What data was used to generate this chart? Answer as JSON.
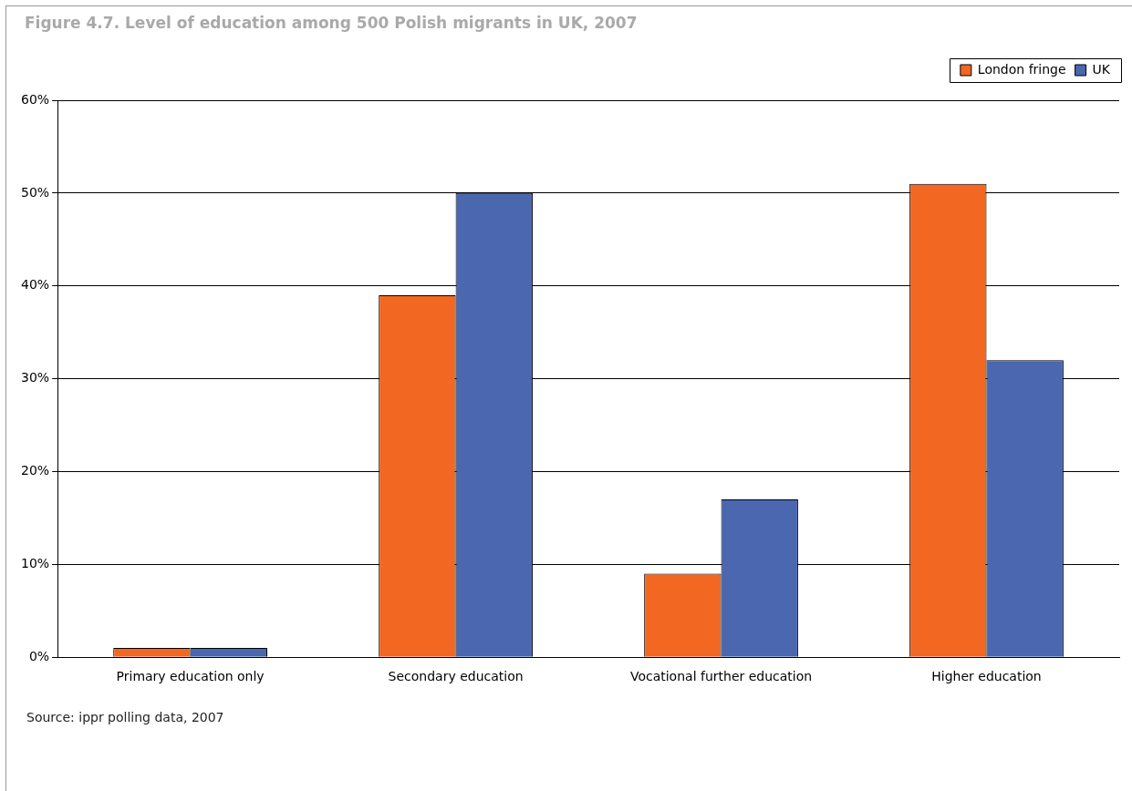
{
  "chart_data": {
    "type": "bar",
    "title": "Figure 4.7. Level of education among 500 Polish migrants in UK, 2007",
    "categories": [
      "Primary education only",
      "Secondary education",
      "Vocational further education",
      "Higher education"
    ],
    "series": [
      {
        "name": "London fringe",
        "color": "#f26722",
        "values": [
          1,
          39,
          9,
          51
        ]
      },
      {
        "name": "UK",
        "color": "#4a67b0",
        "values": [
          1,
          50,
          17,
          32
        ]
      }
    ],
    "ylim": [
      0,
      60
    ],
    "yticks": [
      {
        "value": 0,
        "label": "0%"
      },
      {
        "value": 10,
        "label": "10%"
      },
      {
        "value": 20,
        "label": "20%"
      },
      {
        "value": 30,
        "label": "30%"
      },
      {
        "value": 40,
        "label": "40%"
      },
      {
        "value": 50,
        "label": "50%"
      },
      {
        "value": 60,
        "label": "60%"
      }
    ],
    "grid": "y",
    "legend": "top right",
    "annotations": [
      "Source: ippr polling data, 2007"
    ]
  }
}
